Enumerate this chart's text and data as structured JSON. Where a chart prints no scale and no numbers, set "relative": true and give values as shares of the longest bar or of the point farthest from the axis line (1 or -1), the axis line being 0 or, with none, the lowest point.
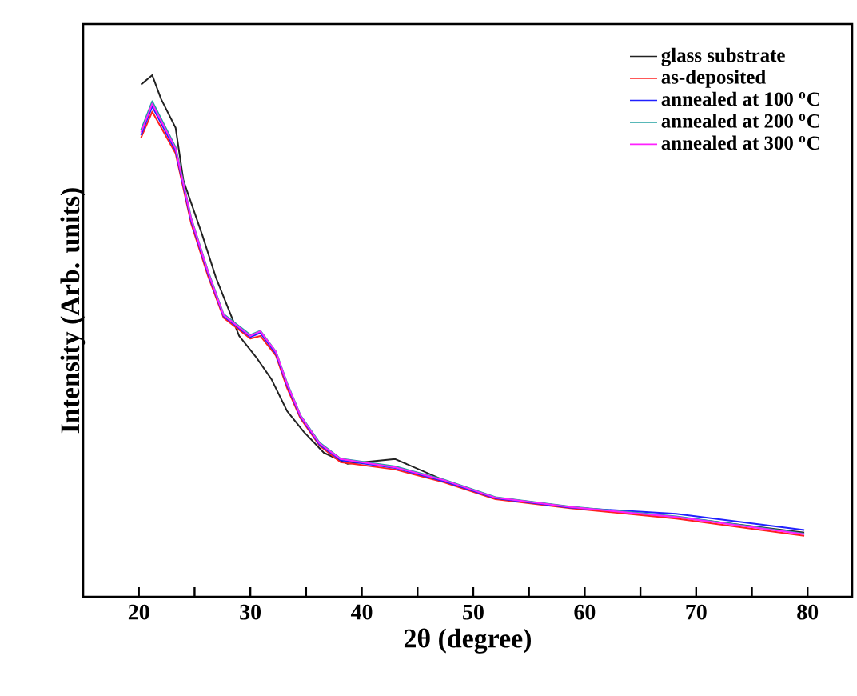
{
  "chart_data": {
    "type": "line",
    "xlabel": "2θ (degree)",
    "ylabel": "Intensity (Arb. units)",
    "relative": true,
    "xlim": [
      15,
      84
    ],
    "xticks": [
      20,
      {
        "value": 25,
        "label": null
      },
      30,
      {
        "value": 35,
        "label": null
      },
      40,
      {
        "value": 45,
        "label": null
      },
      50,
      {
        "value": 55,
        "label": null
      },
      60,
      {
        "value": 65,
        "label": null
      },
      70,
      {
        "value": 75,
        "label": null
      },
      80
    ],
    "legend": "top right",
    "grid": false,
    "tick_labels": "x",
    "series": [
      {
        "name": "glass substrate",
        "color": "#222222",
        "x": [
          20.2,
          21.2,
          22,
          23.3,
          24,
          25.7,
          26.9,
          29,
          30.5,
          31.9,
          33.3,
          34.8,
          36.6,
          38.7,
          43,
          47.3,
          52,
          58.7,
          68.2,
          79.7
        ],
        "values": [
          0.982,
          1.0,
          0.954,
          0.899,
          0.798,
          0.693,
          0.613,
          0.5,
          0.46,
          0.417,
          0.356,
          0.316,
          0.276,
          0.255,
          0.264,
          0.224,
          0.19,
          0.172,
          0.153,
          0.123
        ]
      },
      {
        "name": "as-deposited",
        "color": "#ff2020",
        "x": [
          20.2,
          21.2,
          23.3,
          24.7,
          26.2,
          27.6,
          30,
          30.9,
          32.3,
          33.3,
          34.5,
          36.2,
          38.1,
          43,
          47.3,
          52,
          58.7,
          68.2,
          79.7
        ],
        "values": [
          0.88,
          0.93,
          0.85,
          0.715,
          0.615,
          0.535,
          0.495,
          0.5,
          0.462,
          0.4,
          0.342,
          0.29,
          0.258,
          0.244,
          0.22,
          0.187,
          0.17,
          0.15,
          0.117
        ]
      },
      {
        "name": "annealed at 100 $^{o}$C",
        "color": "#2020ff",
        "x": [
          20.2,
          21.2,
          23.3,
          24.7,
          26.2,
          27.6,
          30,
          30.9,
          32.3,
          33.3,
          34.5,
          36.2,
          38.1,
          43,
          47.3,
          52,
          58.7,
          68.2,
          79.7
        ],
        "values": [
          0.885,
          0.94,
          0.855,
          0.72,
          0.62,
          0.538,
          0.498,
          0.506,
          0.466,
          0.405,
          0.345,
          0.292,
          0.262,
          0.247,
          0.222,
          0.189,
          0.171,
          0.159,
          0.128
        ]
      },
      {
        "name": "annealed at 200 $^{o}$C",
        "color": "#20a0a0",
        "x": [
          20.2,
          21.2,
          23.3,
          24.7,
          26.2,
          27.6,
          30,
          30.9,
          32.3,
          33.3,
          34.5,
          36.2,
          38.1,
          43,
          47.3,
          52,
          58.7,
          68.2,
          79.7
        ],
        "values": [
          0.895,
          0.95,
          0.862,
          0.726,
          0.625,
          0.542,
          0.502,
          0.51,
          0.47,
          0.41,
          0.348,
          0.296,
          0.265,
          0.25,
          0.225,
          0.191,
          0.173,
          0.154,
          0.121
        ]
      },
      {
        "name": "annealed at 300 $^{o}$C",
        "color": "#ff20ff",
        "x": [
          20.2,
          21.2,
          23.3,
          24.7,
          26.2,
          27.6,
          30,
          30.9,
          32.3,
          33.3,
          34.5,
          36.2,
          38.1,
          43,
          47.3,
          52,
          58.7,
          68.2,
          79.7
        ],
        "values": [
          0.89,
          0.945,
          0.859,
          0.724,
          0.623,
          0.54,
          0.5,
          0.509,
          0.469,
          0.408,
          0.347,
          0.294,
          0.264,
          0.248,
          0.224,
          0.19,
          0.172,
          0.153,
          0.12
        ]
      }
    ]
  }
}
